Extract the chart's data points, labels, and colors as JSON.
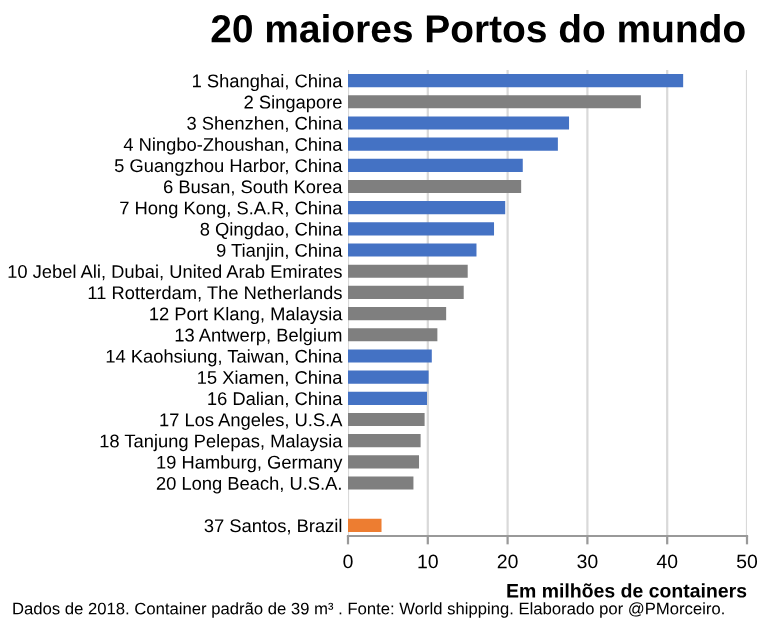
{
  "chart_data": {
    "type": "bar",
    "orientation": "horizontal",
    "title": "20 maiores Portos do mundo",
    "xlabel": "Em milhões de containers",
    "categories": [
      "1 Shanghai, China",
      "2 Singapore",
      "3 Shenzhen, China",
      "4 Ningbo-Zhoushan, China",
      "5 Guangzhou Harbor, China",
      "6 Busan, South Korea",
      "7 Hong Kong, S.A.R, China",
      "8 Qingdao, China",
      "9 Tianjin, China",
      "10 Jebel Ali, Dubai, United Arab Emirates",
      "11 Rotterdam, The Netherlands",
      "12 Port Klang, Malaysia",
      "13 Antwerp, Belgium",
      "14 Kaohsiung, Taiwan, China",
      "15 Xiamen, China",
      "16 Dalian, China",
      "17 Los Angeles, U.S.A",
      "18 Tanjung Pelepas, Malaysia",
      "19 Hamburg, Germany",
      "20 Long Beach, U.S.A.",
      null,
      "37 Santos, Brazil"
    ],
    "values": [
      42.0,
      36.7,
      27.7,
      26.3,
      21.9,
      21.7,
      19.7,
      18.3,
      16.1,
      15.0,
      14.5,
      12.3,
      11.2,
      10.5,
      10.1,
      9.9,
      9.6,
      9.1,
      8.9,
      8.2,
      null,
      4.2
    ],
    "colors": [
      "#4472c4",
      "#7f7f7f",
      "#4472c4",
      "#4472c4",
      "#4472c4",
      "#7f7f7f",
      "#4472c4",
      "#4472c4",
      "#4472c4",
      "#7f7f7f",
      "#7f7f7f",
      "#7f7f7f",
      "#7f7f7f",
      "#4472c4",
      "#4472c4",
      "#4472c4",
      "#7f7f7f",
      "#7f7f7f",
      "#7f7f7f",
      "#7f7f7f",
      "#7f7f7f",
      "#ed7d31"
    ],
    "xlim": [
      0,
      50
    ],
    "xticks": [
      0,
      10,
      20,
      30,
      40,
      50
    ],
    "grid": "x",
    "legend": false,
    "annotations": [
      "Dados de 2018. Container padrão de 39 m³ . Fonte: World shipping. Elaborado por @PMorceiro."
    ]
  }
}
